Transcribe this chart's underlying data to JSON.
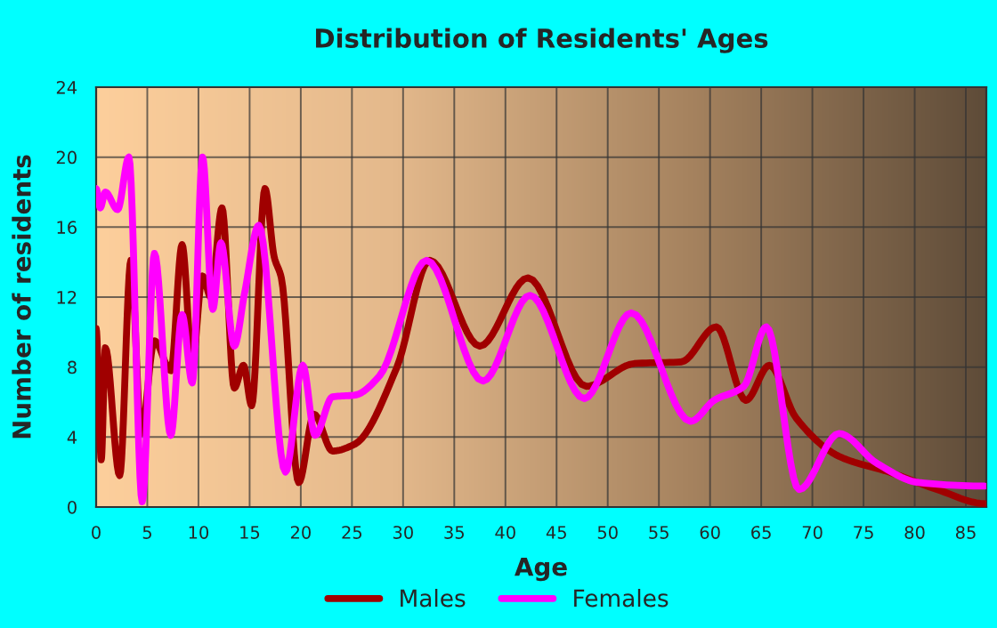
{
  "chart_data": {
    "type": "line",
    "title": "Distribution of Residents' Ages",
    "xlabel": "Age",
    "ylabel": "Number of residents",
    "xlim": [
      0,
      87
    ],
    "xticks": [
      0,
      5,
      10,
      15,
      20,
      25,
      30,
      35,
      40,
      45,
      50,
      55,
      60,
      65,
      70,
      75,
      80,
      85
    ],
    "ylim": [
      0,
      24
    ],
    "yticks": [
      0,
      4,
      8,
      12,
      16,
      20,
      24
    ],
    "grid": true,
    "legend": "bottom",
    "marker": "none",
    "line_style": "solid",
    "series": [
      {
        "name": "Males",
        "color": "#a00000",
        "x": [
          0,
          0.5,
          0.9,
          2.3,
          3.4,
          4.4,
          5.7,
          7.3,
          8.4,
          9.4,
          10.4,
          11.2,
          12.3,
          13.5,
          14.4,
          15.2,
          16.5,
          17.4,
          18.1,
          19.8,
          21.3,
          23.1,
          25.3,
          29.4,
          32.6,
          37.5,
          42.2,
          47.9,
          52.6,
          57.2,
          60.6,
          63.5,
          65.8,
          68.4,
          72.6,
          77.5,
          82.2,
          86.8
        ],
        "values": [
          10.2,
          2.7,
          9.1,
          1.8,
          14.1,
          4.2,
          9.5,
          7.8,
          15.0,
          8.3,
          13.2,
          12.0,
          17.1,
          6.8,
          8.1,
          5.8,
          18.2,
          14.3,
          13.1,
          1.4,
          5.3,
          3.2,
          3.6,
          8.0,
          14.1,
          9.2,
          13.1,
          6.9,
          8.2,
          8.3,
          10.3,
          6.1,
          8.1,
          5.1,
          2.9,
          2.0,
          1.0,
          0.2
        ]
      },
      {
        "name": "Females",
        "color": "#ff00ff",
        "x": [
          0,
          0.4,
          0.9,
          2.1,
          3.2,
          4.5,
          5.7,
          7.3,
          8.4,
          9.4,
          10.4,
          11.4,
          12.2,
          13.5,
          14.5,
          15.9,
          18.5,
          20.2,
          21.4,
          23.1,
          25.3,
          27.7,
          32.3,
          37.8,
          42.4,
          47.7,
          52.3,
          58.1,
          60.4,
          63.3,
          65.5,
          68.7,
          72.6,
          76.3,
          80.4,
          86.8
        ],
        "values": [
          18.2,
          17.1,
          18.0,
          17.0,
          20.0,
          0.3,
          14.5,
          4.1,
          11.0,
          7.1,
          20.0,
          11.3,
          15.1,
          9.2,
          12.2,
          16.1,
          2.0,
          8.1,
          4.1,
          6.3,
          6.4,
          7.5,
          14.1,
          7.2,
          12.1,
          6.2,
          11.1,
          4.9,
          6.1,
          6.9,
          10.3,
          1.0,
          4.2,
          2.5,
          1.4,
          1.2
        ]
      }
    ]
  }
}
